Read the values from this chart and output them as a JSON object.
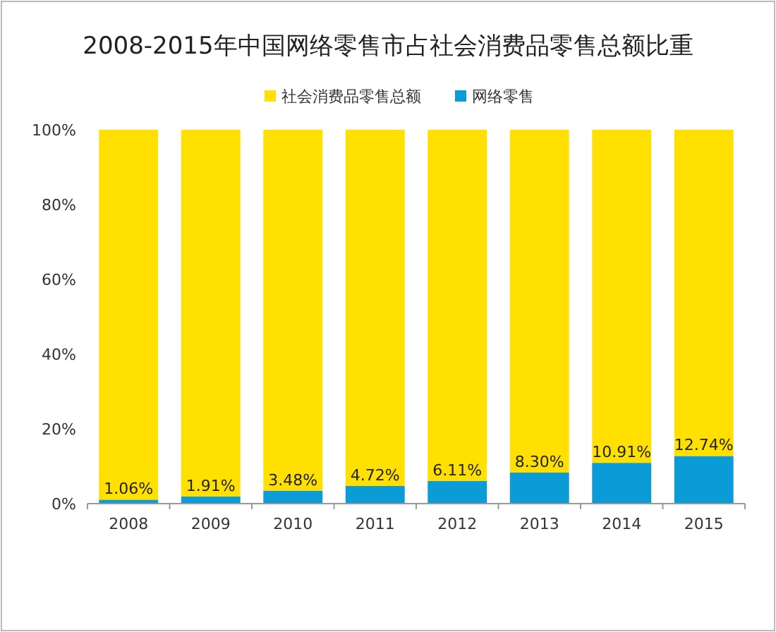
{
  "chart_data": {
    "type": "bar",
    "title": "2008-2015年中国网络零售市占社会消费品零售总额比重",
    "stacked": true,
    "legend": "top",
    "categories": [
      "2008",
      "2009",
      "2010",
      "2011",
      "2012",
      "2013",
      "2014",
      "2015"
    ],
    "ylim": [
      0,
      100
    ],
    "yticks": [
      {
        "value": 0,
        "label": "0%"
      },
      {
        "value": 20,
        "label": "20%"
      },
      {
        "value": 40,
        "label": "40%"
      },
      {
        "value": 60,
        "label": "60%"
      },
      {
        "value": 80,
        "label": "80%"
      },
      {
        "value": 100,
        "label": "100%"
      }
    ],
    "series": [
      {
        "name": "网络零售",
        "color": "#0b9bd7",
        "values": [
          1.06,
          1.91,
          3.48,
          4.72,
          6.11,
          8.3,
          10.91,
          12.74
        ],
        "value_labels": [
          "1.06%",
          "1.91%",
          "3.48%",
          "4.72%",
          "6.11%",
          "8.30%",
          "10.91%",
          "12.74%"
        ]
      },
      {
        "name": "社会消费品零售总额",
        "color": "#ffe000",
        "values": [
          98.94,
          98.09,
          96.52,
          95.28,
          93.89,
          91.7,
          89.09,
          87.26
        ]
      }
    ]
  }
}
